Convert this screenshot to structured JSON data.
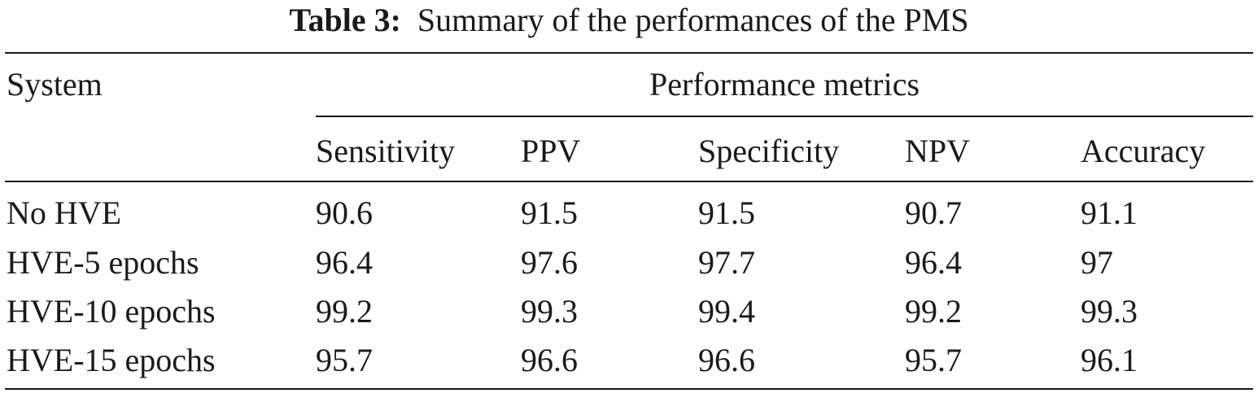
{
  "caption": {
    "label": "Table 3:",
    "text": "Summary of the performances of the PMS"
  },
  "table": {
    "row_header": "System",
    "group_header": "Performance metrics",
    "columns": [
      "Sensitivity",
      "PPV",
      "Specificity",
      "NPV",
      "Accuracy"
    ],
    "rows": [
      {
        "system": "No HVE",
        "values": [
          "90.6",
          "91.5",
          "91.5",
          "90.7",
          "91.1"
        ]
      },
      {
        "system": "HVE-5 epochs",
        "values": [
          "96.4",
          "97.6",
          "97.7",
          "96.4",
          "97"
        ]
      },
      {
        "system": "HVE-10 epochs",
        "values": [
          "99.2",
          "99.3",
          "99.4",
          "99.2",
          "99.3"
        ]
      },
      {
        "system": "HVE-15 epochs",
        "values": [
          "95.7",
          "96.6",
          "96.6",
          "95.7",
          "96.1"
        ]
      }
    ]
  }
}
